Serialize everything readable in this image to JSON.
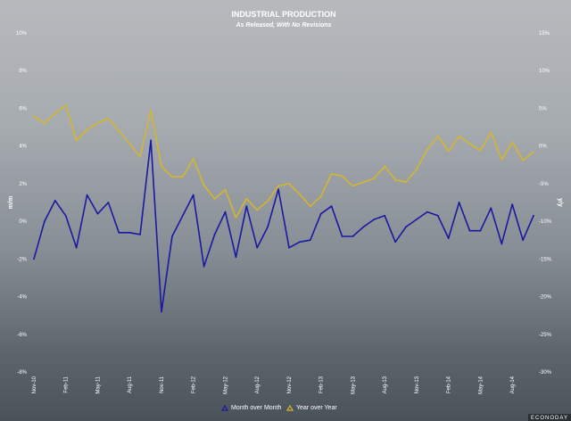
{
  "chart_data": {
    "type": "line",
    "title": "INDUSTRIAL PRODUCTION",
    "subtitle": "As Released, With No Revisions",
    "ylabel_left": "m/m",
    "ylabel_right": "y/y",
    "ylim_left": [
      -8,
      10
    ],
    "yticks_left": [
      "10%",
      "8%",
      "6%",
      "4%",
      "2%",
      "0%",
      "-2%",
      "-4%",
      "-6%",
      "-8%"
    ],
    "ylim_right": [
      -30,
      15
    ],
    "yticks_right": [
      "15%",
      "10%",
      "5%",
      "0%",
      "-5%",
      "-10%",
      "-15%",
      "-20%",
      "-25%",
      "-30%"
    ],
    "x_tick_labels": [
      {
        "label": "Nov-10",
        "index": 0
      },
      {
        "label": "Feb-11",
        "index": 3
      },
      {
        "label": "May-11",
        "index": 6
      },
      {
        "label": "Aug-11",
        "index": 9
      },
      {
        "label": "Nov-11",
        "index": 12
      },
      {
        "label": "Feb-12",
        "index": 15
      },
      {
        "label": "May-12",
        "index": 18
      },
      {
        "label": "Aug-12",
        "index": 21
      },
      {
        "label": "Nov-12",
        "index": 24
      },
      {
        "label": "Feb-13",
        "index": 27
      },
      {
        "label": "May-13",
        "index": 30
      },
      {
        "label": "Aug-13",
        "index": 33
      },
      {
        "label": "Nov-13",
        "index": 36
      },
      {
        "label": "Feb-14",
        "index": 39
      },
      {
        "label": "May-14",
        "index": 42
      },
      {
        "label": "Aug-14",
        "index": 45
      }
    ],
    "grid": false,
    "legend_position": "bottom-center",
    "series": [
      {
        "name": "Month over Month",
        "axis": "left",
        "color": "#1a1aa0",
        "marker": "triangle",
        "values": [
          -2.0,
          0.0,
          1.1,
          0.3,
          -1.4,
          1.4,
          0.4,
          1.0,
          -0.6,
          -0.6,
          -0.7,
          4.3,
          -4.8,
          -0.8,
          0.3,
          1.4,
          -2.4,
          -0.7,
          0.5,
          -1.9,
          0.8,
          -1.4,
          -0.3,
          1.7,
          -1.4,
          -1.1,
          -1.0,
          0.4,
          0.8,
          -0.8,
          -0.8,
          -0.3,
          0.1,
          0.3,
          -1.1,
          -0.3,
          0.1,
          0.5,
          0.3,
          -0.9,
          1.0,
          -0.5,
          -0.5,
          0.7,
          -1.2,
          0.9,
          -1.0,
          0.3
        ]
      },
      {
        "name": "Year over Year",
        "axis": "right",
        "color": "#d4b62e",
        "marker": "triangle",
        "values": [
          4.0,
          3.0,
          4.3,
          5.4,
          0.7,
          2.2,
          3.0,
          3.7,
          2.0,
          0.3,
          -1.4,
          4.7,
          -2.7,
          -4.1,
          -4.1,
          -1.7,
          -5.2,
          -7.0,
          -5.8,
          -9.5,
          -7.0,
          -8.5,
          -7.3,
          -5.3,
          -5.0,
          -6.4,
          -8.0,
          -6.7,
          -3.7,
          -4.0,
          -5.3,
          -4.8,
          -4.3,
          -2.7,
          -4.5,
          -4.8,
          -3.1,
          -0.5,
          1.3,
          -0.7,
          1.3,
          0.3,
          -0.6,
          1.8,
          -1.8,
          0.5,
          -1.9,
          -0.8
        ]
      }
    ]
  },
  "branding": {
    "text": "ECONODAY"
  }
}
